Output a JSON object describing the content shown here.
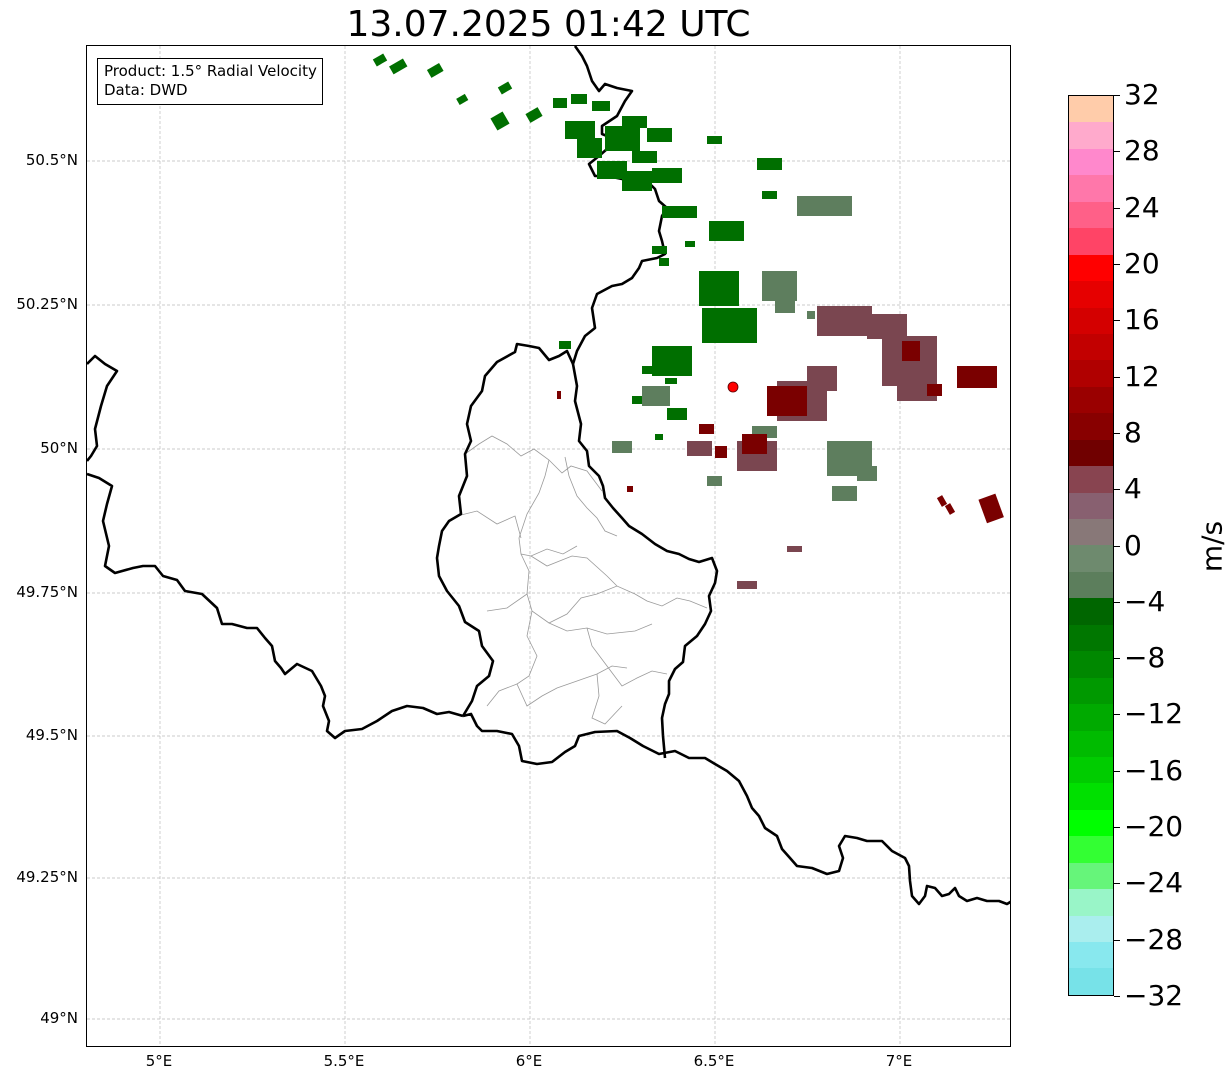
{
  "title": "13.07.2025 01:42 UTC",
  "info": {
    "product": "Product: 1.5° Radial Velocity",
    "source": "Data: DWD"
  },
  "y_ticks": [
    "50.5°N",
    "50.25°N",
    "50°N",
    "49.75°N",
    "49.5°N",
    "49.25°N",
    "49°N"
  ],
  "x_ticks": [
    "5°E",
    "5.5°E",
    "6°E",
    "6.5°E",
    "7°E"
  ],
  "colorbar": {
    "unit": "m/s",
    "labels": [
      "32",
      "28",
      "24",
      "20",
      "16",
      "12",
      "8",
      "4",
      "0",
      "−4",
      "−8",
      "−12",
      "−16",
      "−20",
      "−24",
      "−28",
      "−32"
    ],
    "colors_top_to_bottom": [
      "#ffccaa",
      "#ffaacc",
      "#ff88cc",
      "#ff77aa",
      "#ff6088",
      "#ff4466",
      "#ff0000",
      "#e60000",
      "#d40000",
      "#c20000",
      "#b00000",
      "#9a0000",
      "#880000",
      "#700000",
      "#884450",
      "#886070",
      "#887878",
      "#6e8a6e",
      "#5c7e5c",
      "#006600",
      "#007700",
      "#008800",
      "#009900",
      "#00aa00",
      "#00bb00",
      "#00cc00",
      "#00e000",
      "#00ff00",
      "#33ff33",
      "#66f57a",
      "#99f5c8",
      "#aaeeee",
      "#88e8ee",
      "#77e2e8"
    ]
  },
  "radar_site_color": "#ff0000"
}
